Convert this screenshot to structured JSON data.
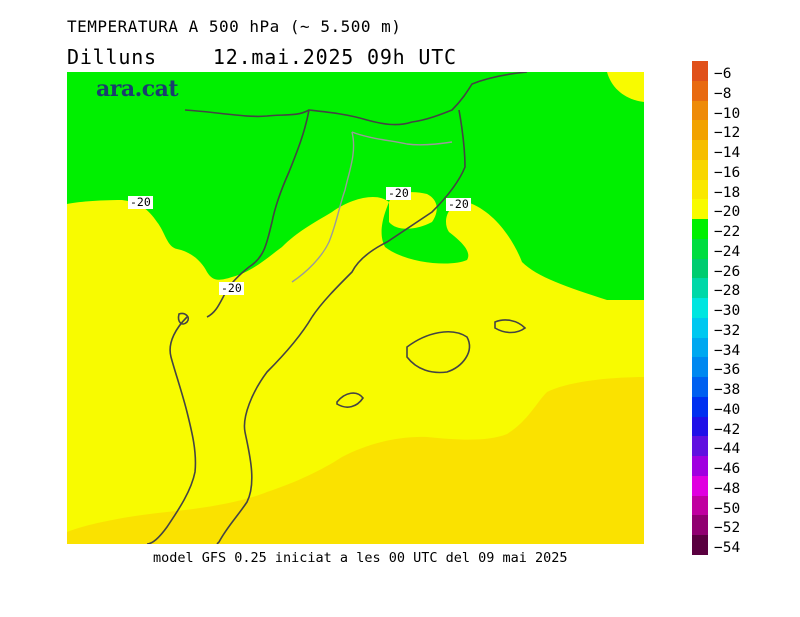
{
  "header": {
    "title": "TEMPERATURA A 500 hPa (~ 5.500 m)",
    "day": "Dilluns",
    "datetime": "12.mai.2025 09h UTC"
  },
  "brand": "ara.cat",
  "footer": "model GFS 0.25 iniciat a les 00 UTC del 09 mai 2025",
  "contour_labels": [
    "-20",
    "-20",
    "-20",
    "-20"
  ],
  "scale": {
    "labels": [
      "-6",
      "-8",
      "-10",
      "-12",
      "-14",
      "-16",
      "-18",
      "-20",
      "-22",
      "-24",
      "-26",
      "-28",
      "-30",
      "-32",
      "-34",
      "-36",
      "-38",
      "-40",
      "-42",
      "-44",
      "-46",
      "-48",
      "-50",
      "-52",
      "-54"
    ],
    "colors": [
      "#e0501a",
      "#e86a10",
      "#ee8a08",
      "#f2a200",
      "#f6be00",
      "#f8d600",
      "#fae800",
      "#f8fb00",
      "#00f000",
      "#00dd40",
      "#00cc70",
      "#00d8a8",
      "#00e6e0",
      "#00c8f0",
      "#00a8f0",
      "#0088f0",
      "#0060f0",
      "#0030f0",
      "#2010e8",
      "#6010e0",
      "#a000e0",
      "#e000e0",
      "#c000a0",
      "#900070",
      "#5a0040"
    ]
  },
  "map_colors": {
    "green": "#00f000",
    "yellow": "#f8fb00",
    "orange_yellow": "#fae200",
    "light_orange": "#f8d200"
  }
}
